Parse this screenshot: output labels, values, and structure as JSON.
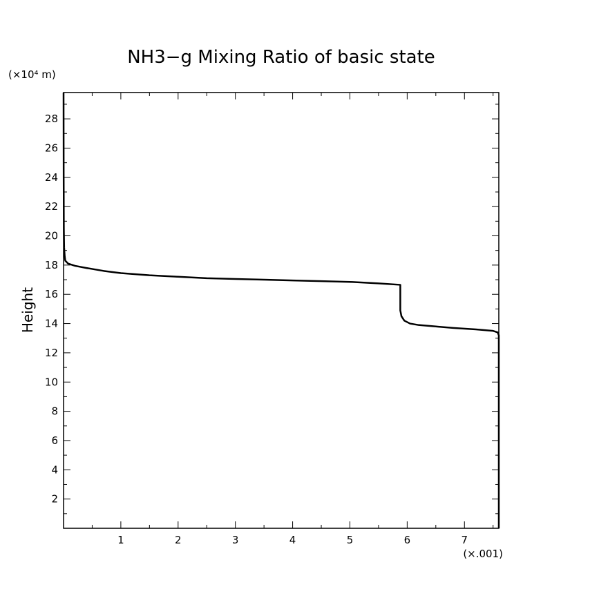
{
  "chart_data": {
    "type": "line",
    "title": "NH3−g Mixing Ratio of basic state",
    "xlabel": "",
    "x_scale_label": "(×.001)",
    "ylabel": "Height",
    "y_unit_label": "(×10⁴ m)",
    "xlim": [
      0,
      7.6
    ],
    "ylim": [
      0,
      29.8
    ],
    "x_ticks": [
      1,
      2,
      3,
      4,
      5,
      6,
      7
    ],
    "y_ticks": [
      2,
      4,
      6,
      8,
      10,
      12,
      14,
      16,
      18,
      20,
      22,
      24,
      26,
      28
    ],
    "grid": false,
    "series": [
      {
        "color": "#000000",
        "points": [
          [
            7.6,
            0.0
          ],
          [
            7.6,
            12.0
          ],
          [
            7.6,
            13.2
          ],
          [
            7.58,
            13.4
          ],
          [
            7.5,
            13.5
          ],
          [
            7.2,
            13.6
          ],
          [
            6.8,
            13.7
          ],
          [
            6.5,
            13.8
          ],
          [
            6.2,
            13.9
          ],
          [
            6.05,
            14.0
          ],
          [
            5.95,
            14.2
          ],
          [
            5.9,
            14.5
          ],
          [
            5.88,
            14.9
          ],
          [
            5.88,
            15.8
          ],
          [
            5.88,
            16.65
          ],
          [
            5.5,
            16.75
          ],
          [
            5.0,
            16.85
          ],
          [
            4.5,
            16.9
          ],
          [
            4.0,
            16.95
          ],
          [
            3.5,
            17.0
          ],
          [
            3.0,
            17.05
          ],
          [
            2.5,
            17.1
          ],
          [
            2.0,
            17.2
          ],
          [
            1.5,
            17.3
          ],
          [
            1.0,
            17.45
          ],
          [
            0.7,
            17.6
          ],
          [
            0.4,
            17.8
          ],
          [
            0.2,
            17.95
          ],
          [
            0.08,
            18.1
          ],
          [
            0.03,
            18.3
          ],
          [
            0.02,
            18.6
          ],
          [
            0.01,
            19.2
          ],
          [
            0.005,
            20.5
          ],
          [
            0.002,
            24.0
          ],
          [
            0.0,
            29.8
          ]
        ]
      }
    ]
  }
}
